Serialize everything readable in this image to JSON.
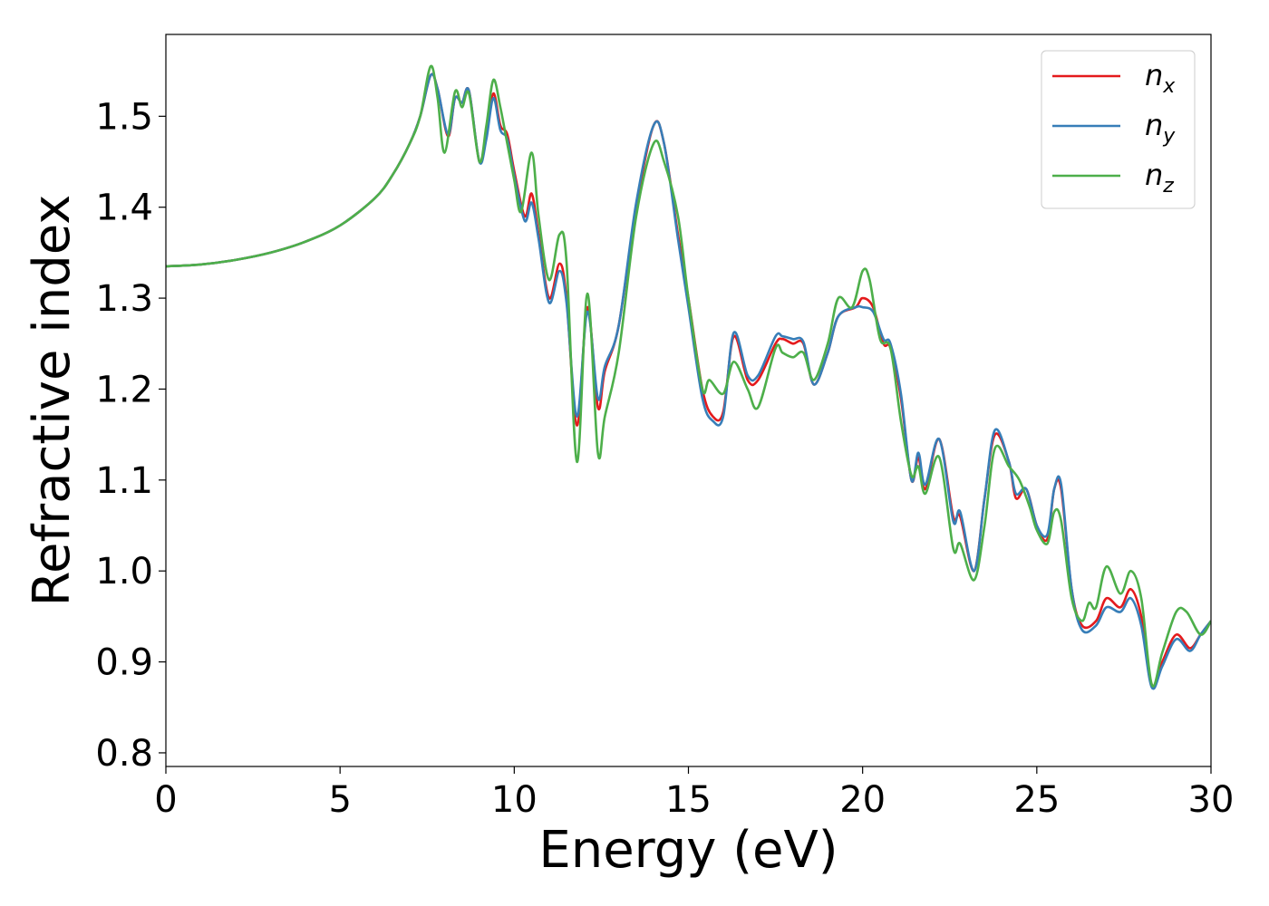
{
  "chart_data": {
    "type": "line",
    "title": "",
    "xlabel": "Energy (eV)",
    "ylabel": "Refractive index",
    "xlim": [
      0,
      30
    ],
    "ylim": [
      0.785,
      1.59
    ],
    "xticks": [
      0,
      5,
      10,
      15,
      20,
      25,
      30
    ],
    "xtick_labels": [
      "0",
      "5",
      "10",
      "15",
      "20",
      "25",
      "30"
    ],
    "yticks": [
      0.8,
      0.9,
      1.0,
      1.1,
      1.2,
      1.3,
      1.4,
      1.5
    ],
    "ytick_labels": [
      "0.8",
      "0.9",
      "1.0",
      "1.1",
      "1.2",
      "1.3",
      "1.4",
      "1.5"
    ],
    "grid": false,
    "legend_position": "top-right",
    "series": [
      {
        "name_base": "n",
        "name_sub": "x",
        "color": "#e41a1c",
        "points": [
          [
            0,
            1.335
          ],
          [
            1,
            1.337
          ],
          [
            2,
            1.342
          ],
          [
            3,
            1.35
          ],
          [
            4,
            1.362
          ],
          [
            5,
            1.38
          ],
          [
            6,
            1.41
          ],
          [
            6.5,
            1.435
          ],
          [
            7,
            1.47
          ],
          [
            7.3,
            1.5
          ],
          [
            7.6,
            1.545
          ],
          [
            7.8,
            1.53
          ],
          [
            8.1,
            1.478
          ],
          [
            8.3,
            1.52
          ],
          [
            8.5,
            1.515
          ],
          [
            8.7,
            1.528
          ],
          [
            9.0,
            1.45
          ],
          [
            9.2,
            1.48
          ],
          [
            9.4,
            1.525
          ],
          [
            9.6,
            1.49
          ],
          [
            9.8,
            1.48
          ],
          [
            10.0,
            1.44
          ],
          [
            10.3,
            1.39
          ],
          [
            10.5,
            1.415
          ],
          [
            10.7,
            1.37
          ],
          [
            11.0,
            1.3
          ],
          [
            11.3,
            1.338
          ],
          [
            11.5,
            1.3
          ],
          [
            11.8,
            1.16
          ],
          [
            12.1,
            1.29
          ],
          [
            12.4,
            1.18
          ],
          [
            12.6,
            1.22
          ],
          [
            13.0,
            1.27
          ],
          [
            13.5,
            1.4
          ],
          [
            14.0,
            1.49
          ],
          [
            14.3,
            1.47
          ],
          [
            14.7,
            1.37
          ],
          [
            15.0,
            1.3
          ],
          [
            15.4,
            1.2
          ],
          [
            15.7,
            1.17
          ],
          [
            16.0,
            1.175
          ],
          [
            16.3,
            1.258
          ],
          [
            16.7,
            1.21
          ],
          [
            17.0,
            1.21
          ],
          [
            17.5,
            1.25
          ],
          [
            17.7,
            1.255
          ],
          [
            18.0,
            1.25
          ],
          [
            18.3,
            1.25
          ],
          [
            18.6,
            1.205
          ],
          [
            19.0,
            1.24
          ],
          [
            19.3,
            1.28
          ],
          [
            19.8,
            1.29
          ],
          [
            20.0,
            1.3
          ],
          [
            20.3,
            1.29
          ],
          [
            20.6,
            1.25
          ],
          [
            20.8,
            1.245
          ],
          [
            21.1,
            1.19
          ],
          [
            21.4,
            1.1
          ],
          [
            21.6,
            1.125
          ],
          [
            21.8,
            1.09
          ],
          [
            22.2,
            1.145
          ],
          [
            22.6,
            1.06
          ],
          [
            22.8,
            1.06
          ],
          [
            23.2,
            1.0
          ],
          [
            23.5,
            1.08
          ],
          [
            23.8,
            1.15
          ],
          [
            24.2,
            1.12
          ],
          [
            24.4,
            1.08
          ],
          [
            24.7,
            1.09
          ],
          [
            25.0,
            1.05
          ],
          [
            25.3,
            1.035
          ],
          [
            25.5,
            1.09
          ],
          [
            25.7,
            1.09
          ],
          [
            26.0,
            0.98
          ],
          [
            26.3,
            0.94
          ],
          [
            26.7,
            0.945
          ],
          [
            27.0,
            0.97
          ],
          [
            27.4,
            0.96
          ],
          [
            27.7,
            0.98
          ],
          [
            28.0,
            0.95
          ],
          [
            28.3,
            0.875
          ],
          [
            28.6,
            0.9
          ],
          [
            29.0,
            0.93
          ],
          [
            29.4,
            0.915
          ],
          [
            29.7,
            0.93
          ],
          [
            30.0,
            0.945
          ]
        ]
      },
      {
        "name_base": "n",
        "name_sub": "y",
        "color": "#377eb8",
        "points": [
          [
            0,
            1.335
          ],
          [
            1,
            1.337
          ],
          [
            2,
            1.342
          ],
          [
            3,
            1.35
          ],
          [
            4,
            1.362
          ],
          [
            5,
            1.38
          ],
          [
            6,
            1.41
          ],
          [
            6.5,
            1.435
          ],
          [
            7,
            1.47
          ],
          [
            7.3,
            1.5
          ],
          [
            7.6,
            1.545
          ],
          [
            7.8,
            1.53
          ],
          [
            8.1,
            1.48
          ],
          [
            8.3,
            1.52
          ],
          [
            8.5,
            1.515
          ],
          [
            8.7,
            1.528
          ],
          [
            9.0,
            1.45
          ],
          [
            9.2,
            1.475
          ],
          [
            9.4,
            1.52
          ],
          [
            9.6,
            1.485
          ],
          [
            9.8,
            1.475
          ],
          [
            10.0,
            1.435
          ],
          [
            10.3,
            1.385
          ],
          [
            10.5,
            1.405
          ],
          [
            10.7,
            1.365
          ],
          [
            11.0,
            1.295
          ],
          [
            11.3,
            1.33
          ],
          [
            11.5,
            1.295
          ],
          [
            11.8,
            1.17
          ],
          [
            12.1,
            1.285
          ],
          [
            12.4,
            1.19
          ],
          [
            12.6,
            1.225
          ],
          [
            13.0,
            1.27
          ],
          [
            13.5,
            1.405
          ],
          [
            14.0,
            1.49
          ],
          [
            14.3,
            1.47
          ],
          [
            14.7,
            1.365
          ],
          [
            15.0,
            1.29
          ],
          [
            15.4,
            1.19
          ],
          [
            15.7,
            1.165
          ],
          [
            16.0,
            1.17
          ],
          [
            16.3,
            1.262
          ],
          [
            16.7,
            1.215
          ],
          [
            17.0,
            1.215
          ],
          [
            17.5,
            1.258
          ],
          [
            17.7,
            1.258
          ],
          [
            18.0,
            1.255
          ],
          [
            18.3,
            1.252
          ],
          [
            18.6,
            1.205
          ],
          [
            19.0,
            1.24
          ],
          [
            19.3,
            1.28
          ],
          [
            19.8,
            1.29
          ],
          [
            20.0,
            1.29
          ],
          [
            20.3,
            1.285
          ],
          [
            20.6,
            1.255
          ],
          [
            20.8,
            1.25
          ],
          [
            21.1,
            1.195
          ],
          [
            21.4,
            1.1
          ],
          [
            21.6,
            1.13
          ],
          [
            21.8,
            1.095
          ],
          [
            22.2,
            1.145
          ],
          [
            22.6,
            1.055
          ],
          [
            22.8,
            1.065
          ],
          [
            23.2,
            1.0
          ],
          [
            23.5,
            1.08
          ],
          [
            23.8,
            1.155
          ],
          [
            24.2,
            1.12
          ],
          [
            24.4,
            1.085
          ],
          [
            24.7,
            1.09
          ],
          [
            25.0,
            1.05
          ],
          [
            25.3,
            1.04
          ],
          [
            25.5,
            1.09
          ],
          [
            25.7,
            1.095
          ],
          [
            26.0,
            0.98
          ],
          [
            26.3,
            0.935
          ],
          [
            26.7,
            0.94
          ],
          [
            27.0,
            0.96
          ],
          [
            27.4,
            0.955
          ],
          [
            27.7,
            0.97
          ],
          [
            28.0,
            0.94
          ],
          [
            28.3,
            0.872
          ],
          [
            28.6,
            0.895
          ],
          [
            29.0,
            0.925
          ],
          [
            29.4,
            0.912
          ],
          [
            29.7,
            0.93
          ],
          [
            30.0,
            0.945
          ]
        ]
      },
      {
        "name_base": "n",
        "name_sub": "z",
        "color": "#4daf4a",
        "points": [
          [
            0,
            1.335
          ],
          [
            1,
            1.337
          ],
          [
            2,
            1.342
          ],
          [
            3,
            1.35
          ],
          [
            4,
            1.362
          ],
          [
            5,
            1.38
          ],
          [
            6,
            1.41
          ],
          [
            6.5,
            1.435
          ],
          [
            7,
            1.47
          ],
          [
            7.3,
            1.5
          ],
          [
            7.6,
            1.555
          ],
          [
            7.8,
            1.52
          ],
          [
            8.0,
            1.46
          ],
          [
            8.3,
            1.527
          ],
          [
            8.5,
            1.51
          ],
          [
            8.7,
            1.525
          ],
          [
            9.0,
            1.45
          ],
          [
            9.2,
            1.49
          ],
          [
            9.4,
            1.54
          ],
          [
            9.6,
            1.51
          ],
          [
            9.8,
            1.47
          ],
          [
            10.0,
            1.43
          ],
          [
            10.2,
            1.395
          ],
          [
            10.5,
            1.46
          ],
          [
            10.7,
            1.39
          ],
          [
            11.0,
            1.32
          ],
          [
            11.3,
            1.37
          ],
          [
            11.5,
            1.34
          ],
          [
            11.8,
            1.12
          ],
          [
            12.1,
            1.305
          ],
          [
            12.4,
            1.13
          ],
          [
            12.6,
            1.17
          ],
          [
            13.0,
            1.24
          ],
          [
            13.5,
            1.39
          ],
          [
            14.0,
            1.47
          ],
          [
            14.3,
            1.45
          ],
          [
            14.7,
            1.39
          ],
          [
            15.0,
            1.3
          ],
          [
            15.4,
            1.2
          ],
          [
            15.6,
            1.21
          ],
          [
            16.0,
            1.195
          ],
          [
            16.3,
            1.23
          ],
          [
            16.7,
            1.2
          ],
          [
            17.0,
            1.18
          ],
          [
            17.5,
            1.245
          ],
          [
            17.7,
            1.24
          ],
          [
            18.0,
            1.235
          ],
          [
            18.3,
            1.24
          ],
          [
            18.6,
            1.21
          ],
          [
            19.0,
            1.25
          ],
          [
            19.3,
            1.3
          ],
          [
            19.7,
            1.29
          ],
          [
            20.0,
            1.33
          ],
          [
            20.2,
            1.32
          ],
          [
            20.5,
            1.255
          ],
          [
            20.8,
            1.245
          ],
          [
            21.1,
            1.165
          ],
          [
            21.4,
            1.105
          ],
          [
            21.6,
            1.115
          ],
          [
            21.8,
            1.085
          ],
          [
            22.2,
            1.125
          ],
          [
            22.6,
            1.025
          ],
          [
            22.8,
            1.03
          ],
          [
            23.2,
            0.99
          ],
          [
            23.5,
            1.05
          ],
          [
            23.8,
            1.135
          ],
          [
            24.2,
            1.115
          ],
          [
            24.5,
            1.1
          ],
          [
            24.8,
            1.07
          ],
          [
            25.0,
            1.045
          ],
          [
            25.3,
            1.03
          ],
          [
            25.5,
            1.065
          ],
          [
            25.7,
            1.055
          ],
          [
            26.0,
            0.97
          ],
          [
            26.3,
            0.945
          ],
          [
            26.5,
            0.965
          ],
          [
            26.7,
            0.96
          ],
          [
            27.0,
            1.005
          ],
          [
            27.4,
            0.975
          ],
          [
            27.7,
            1.0
          ],
          [
            28.0,
            0.97
          ],
          [
            28.3,
            0.875
          ],
          [
            28.6,
            0.91
          ],
          [
            29.0,
            0.955
          ],
          [
            29.3,
            0.955
          ],
          [
            29.7,
            0.93
          ],
          [
            30.0,
            0.945
          ]
        ]
      }
    ]
  }
}
